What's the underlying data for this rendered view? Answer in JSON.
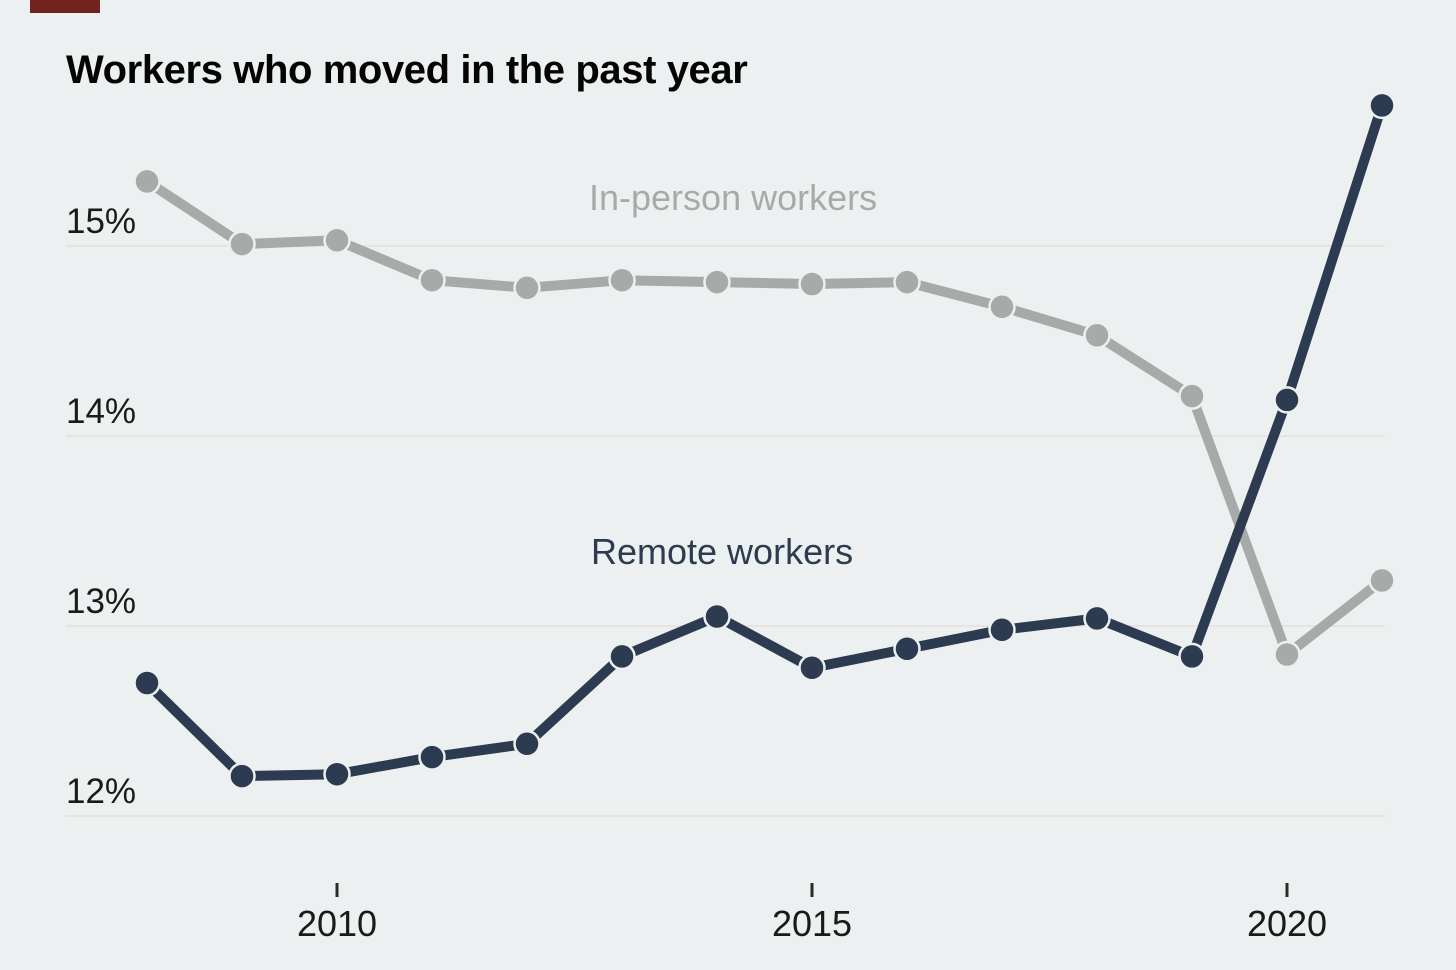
{
  "page": {
    "background_color": "#edf0f1",
    "top_fragment_color": "#72231e"
  },
  "chart_data": {
    "type": "line",
    "title": "Workers who moved in the past year",
    "xlabel": "",
    "ylabel": "",
    "x": [
      2008,
      2009,
      2010,
      2011,
      2012,
      2013,
      2014,
      2015,
      2016,
      2017,
      2018,
      2019,
      2020,
      2021
    ],
    "x_range": [
      2008,
      2021
    ],
    "ylim": [
      11.9,
      16.1
    ],
    "grid": true,
    "legend_position": "inline-labels-on-chart",
    "x_axis": {
      "tick_years": [
        2010,
        2015,
        2020
      ],
      "tick_labels": [
        "2010",
        "2015",
        "2020"
      ]
    },
    "y_axis": {
      "tick_values": [
        15,
        14,
        13,
        12
      ],
      "tick_labels": [
        "15%",
        "14%",
        "13%",
        "12%"
      ],
      "unit": "percent"
    },
    "series": [
      {
        "name": "In-person workers",
        "color": "#a6abaa",
        "values": [
          15.34,
          15.01,
          15.03,
          14.82,
          14.78,
          14.82,
          14.81,
          14.8,
          14.81,
          14.68,
          14.53,
          14.21,
          12.85,
          13.24
        ]
      },
      {
        "name": "Remote workers",
        "color": "#2c3b4f",
        "values": [
          12.7,
          12.21,
          12.22,
          12.31,
          12.38,
          12.84,
          13.05,
          12.78,
          12.88,
          12.98,
          13.04,
          12.84,
          14.19,
          15.74
        ]
      }
    ]
  },
  "style": {
    "gridline_color": "#e8e3de",
    "tick_color": "#2b2b2b",
    "axis_text_color": "#1a1a1a",
    "dot_halo_color": "#edf0f1"
  }
}
